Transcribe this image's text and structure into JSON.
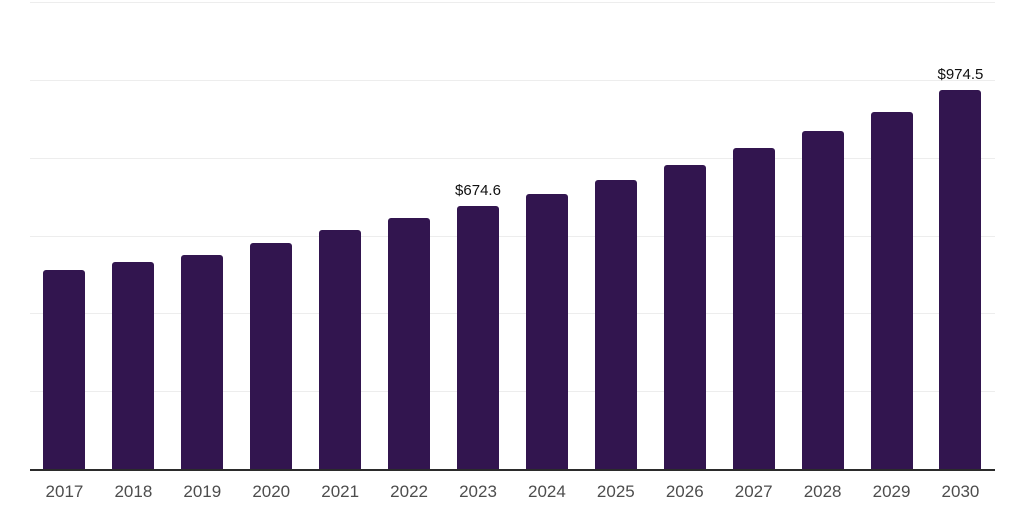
{
  "chart_data": {
    "type": "bar",
    "title": "",
    "xlabel": "",
    "ylabel": "",
    "categories": [
      "2017",
      "2018",
      "2019",
      "2020",
      "2021",
      "2022",
      "2023",
      "2024",
      "2025",
      "2026",
      "2027",
      "2028",
      "2029",
      "2030"
    ],
    "values": [
      510.2,
      530.8,
      549.9,
      580.6,
      612.9,
      644.8,
      674.6,
      706.4,
      743.2,
      781.7,
      824.5,
      869.8,
      918.5,
      974.5
    ],
    "data_labels": [
      {
        "category": "2023",
        "text": "$674.6"
      },
      {
        "category": "2030",
        "text": "$974.5"
      }
    ],
    "ylim": [
      0,
      1200
    ],
    "gridline_step": 200,
    "grid": true,
    "legend": "none",
    "colors": {
      "bar": "#32154f",
      "axis_line": "#2b2b2b",
      "gridline": "#ededed",
      "tick_label": "#4d4d4d",
      "data_label": "#101010",
      "background": "#ffffff"
    }
  }
}
